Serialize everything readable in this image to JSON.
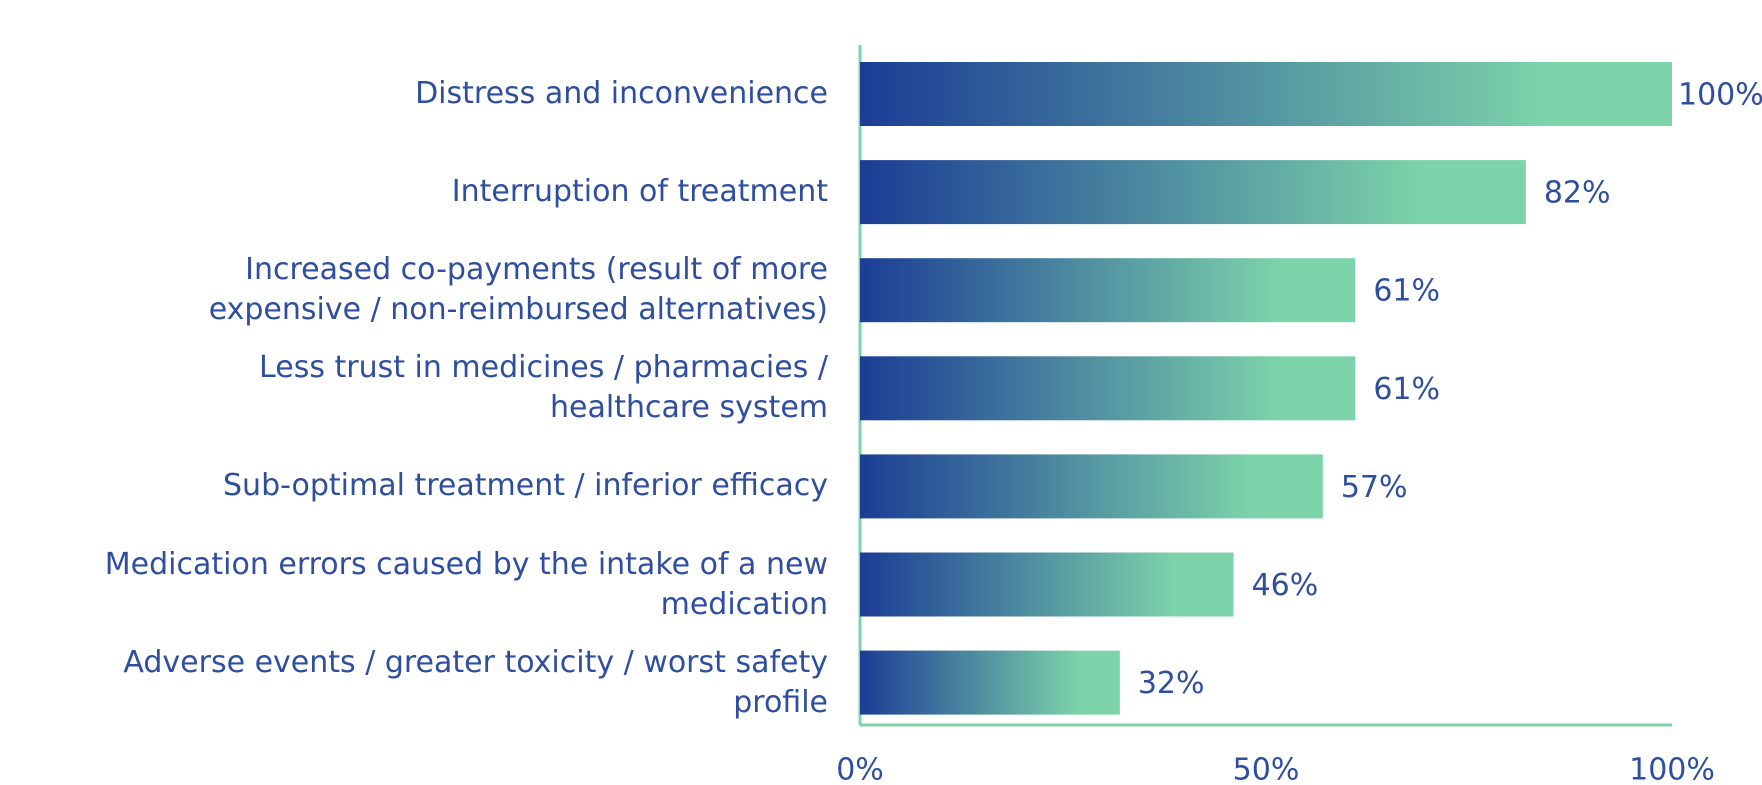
{
  "chart_data": {
    "type": "barh",
    "categories": [
      "Distress and inconvenience",
      "Interruption of treatment",
      "Increased co-payments (result of more\nexpensive / non-reimbursed alternatives)",
      "Less trust in medicines / pharmacies /\nhealthcare system",
      "Sub-optimal treatment / inferior efficacy",
      "Medication errors caused by the intake of a new\nmedication",
      "Adverse events / greater toxicity / worst safety\nprofile"
    ],
    "values": [
      100,
      82,
      61,
      61,
      57,
      46,
      32
    ],
    "value_labels": [
      "100%",
      "82%",
      "61%",
      "61%",
      "57%",
      "46%",
      "32%"
    ],
    "color_start": "#1b3d95",
    "color_end": "#7dd4aa",
    "xlim": [
      0,
      100
    ],
    "xticks": [
      {
        "value": 0,
        "label": "0%"
      },
      {
        "value": 50,
        "label": "50%"
      },
      {
        "value": 100,
        "label": "100%"
      }
    ]
  }
}
